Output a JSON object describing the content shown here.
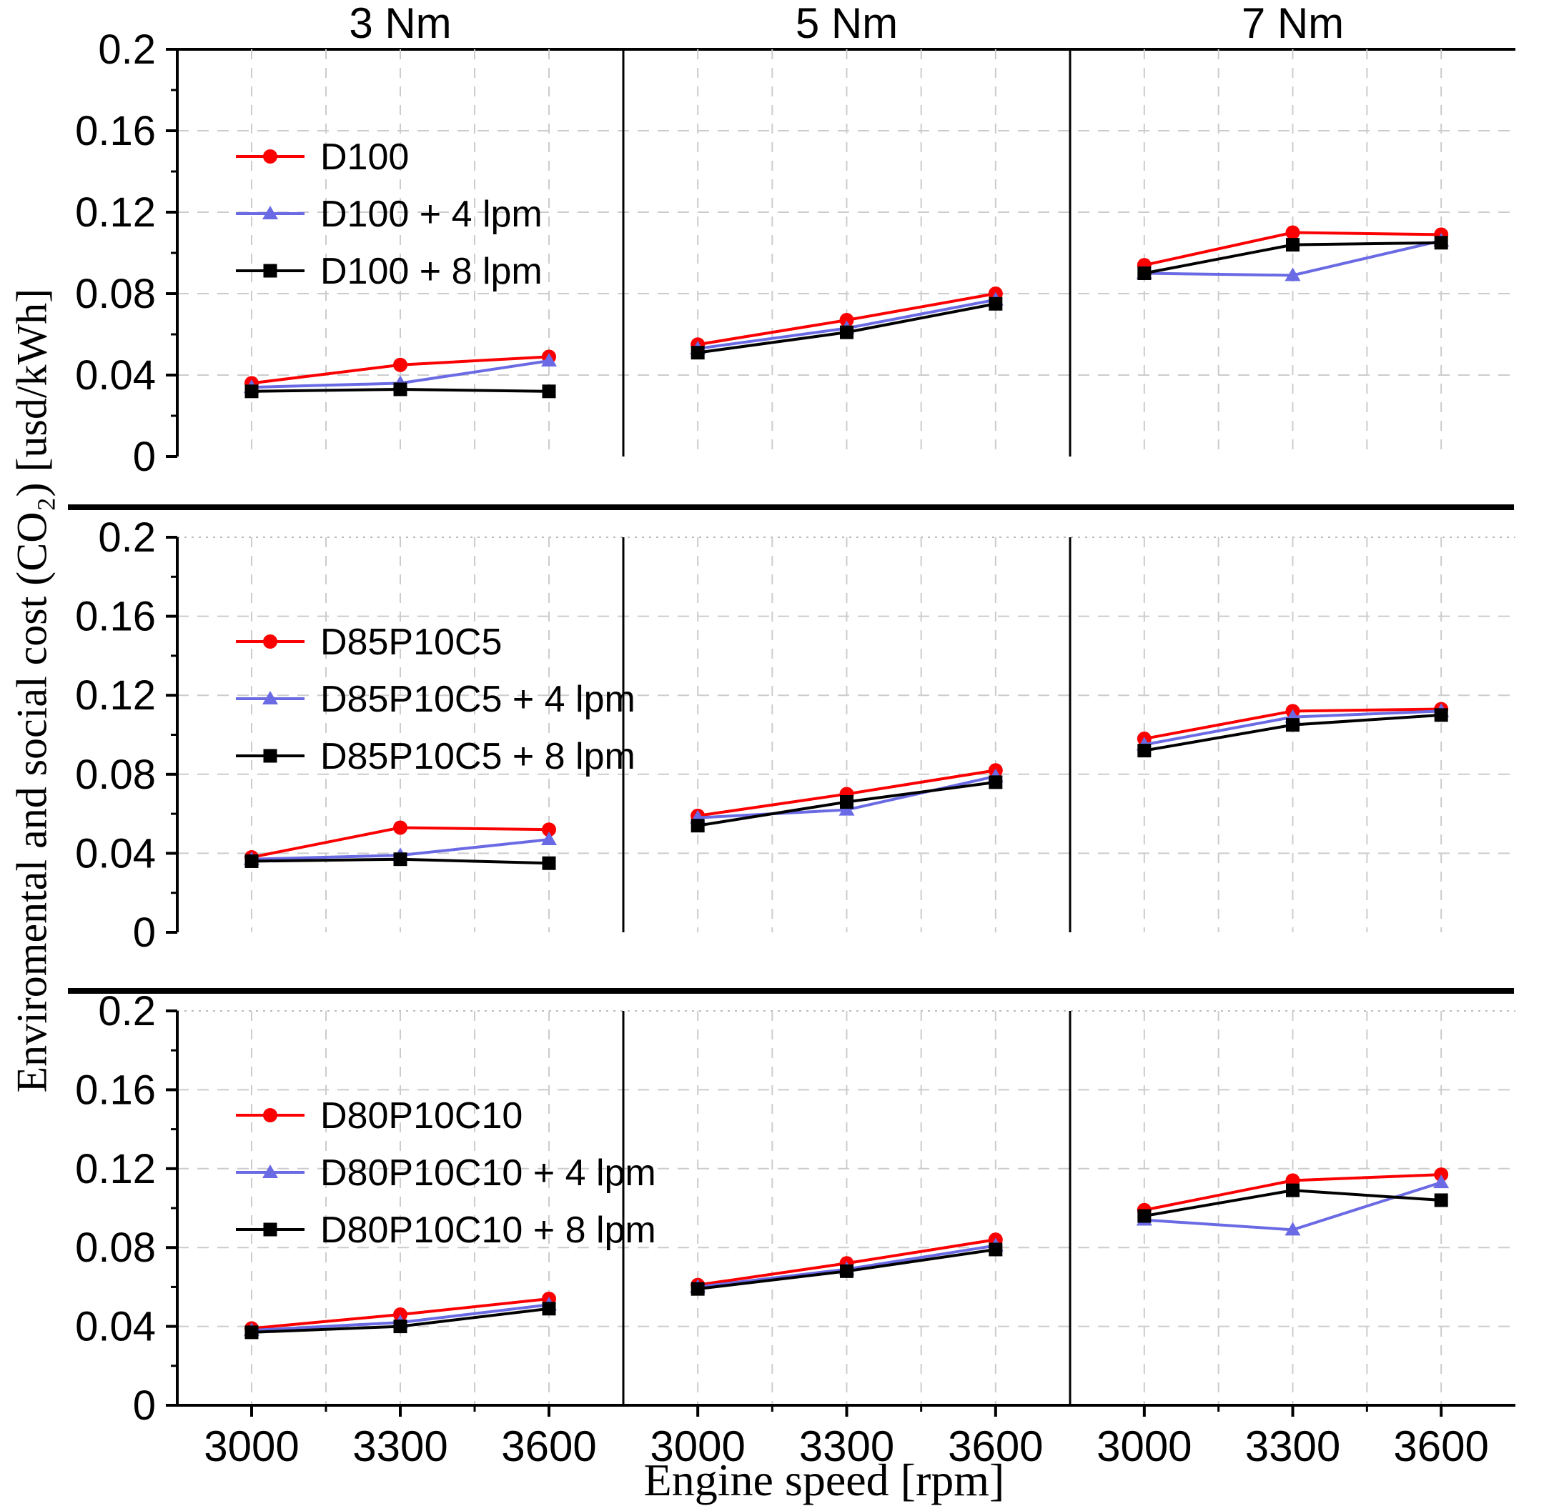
{
  "chart_data": {
    "type": "line",
    "title": "",
    "xlabel": "Engine speed [rpm]",
    "ylabel": "Enviromental and social cost (CO₂) [usd/kWh]",
    "column_titles": [
      "3 Nm",
      "5 Nm",
      "7 Nm"
    ],
    "x": [
      3000,
      3300,
      3600
    ],
    "x_range": [
      2850,
      3750
    ],
    "x_gridlines": [
      3000,
      3150,
      3300,
      3450,
      3600
    ],
    "xtick_labels": [
      "3000",
      "3300",
      "3600"
    ],
    "ylim": [
      0,
      0.2
    ],
    "yticks": [
      0,
      0.04,
      0.08,
      0.12,
      0.16,
      0.2
    ],
    "ytick_labels": [
      "0",
      "0.04",
      "0.08",
      "0.12",
      "0.16",
      "0.2"
    ],
    "y_minor_step": 0.02,
    "grid": "dashed",
    "legend_position": "top-left-of-first-panel-each-row",
    "series_styles": [
      {
        "role": "base-fuel",
        "color": "#fa0000",
        "marker": "circle"
      },
      {
        "role": "plus-4-lpm",
        "color": "#6a6ae4",
        "marker": "triangle"
      },
      {
        "role": "plus-8-lpm",
        "color": "#000000",
        "marker": "square"
      }
    ],
    "rows": [
      {
        "fuel": "D100",
        "legend": [
          "D100",
          "D100 + 4 lpm",
          "D100 + 8 lpm"
        ],
        "panels": [
          {
            "torque": "3 Nm",
            "series": [
              [
                0.036,
                0.045,
                0.049
              ],
              [
                0.034,
                0.036,
                0.047
              ],
              [
                0.032,
                0.033,
                0.032
              ]
            ]
          },
          {
            "torque": "5 Nm",
            "series": [
              [
                0.055,
                0.067,
                0.08
              ],
              [
                0.053,
                0.063,
                0.077
              ],
              [
                0.051,
                0.061,
                0.075
              ]
            ]
          },
          {
            "torque": "7 Nm",
            "series": [
              [
                0.094,
                0.11,
                0.109
              ],
              [
                0.09,
                0.089,
                0.106
              ],
              [
                0.09,
                0.104,
                0.105
              ]
            ]
          }
        ]
      },
      {
        "fuel": "D85P10C5",
        "legend": [
          "D85P10C5",
          "D85P10C5 + 4 lpm",
          "D85P10C5 + 8 lpm"
        ],
        "panels": [
          {
            "torque": "3 Nm",
            "series": [
              [
                0.038,
                0.053,
                0.052
              ],
              [
                0.037,
                0.039,
                0.047
              ],
              [
                0.036,
                0.037,
                0.035
              ]
            ]
          },
          {
            "torque": "5 Nm",
            "series": [
              [
                0.059,
                0.07,
                0.082
              ],
              [
                0.058,
                0.062,
                0.079
              ],
              [
                0.054,
                0.066,
                0.076
              ]
            ]
          },
          {
            "torque": "7 Nm",
            "series": [
              [
                0.098,
                0.112,
                0.113
              ],
              [
                0.095,
                0.109,
                0.112
              ],
              [
                0.092,
                0.105,
                0.11
              ]
            ]
          }
        ]
      },
      {
        "fuel": "D80P10C10",
        "legend": [
          "D80P10C10",
          "D80P10C10 + 4 lpm",
          "D80P10C10 + 8 lpm"
        ],
        "panels": [
          {
            "torque": "3 Nm",
            "series": [
              [
                0.039,
                0.046,
                0.054
              ],
              [
                0.038,
                0.042,
                0.051
              ],
              [
                0.037,
                0.04,
                0.049
              ]
            ]
          },
          {
            "torque": "5 Nm",
            "series": [
              [
                0.061,
                0.072,
                0.084
              ],
              [
                0.06,
                0.069,
                0.081
              ],
              [
                0.059,
                0.068,
                0.079
              ]
            ]
          },
          {
            "torque": "7 Nm",
            "series": [
              [
                0.099,
                0.114,
                0.117
              ],
              [
                0.094,
                0.089,
                0.113
              ],
              [
                0.096,
                0.109,
                0.104
              ]
            ]
          }
        ]
      }
    ]
  }
}
